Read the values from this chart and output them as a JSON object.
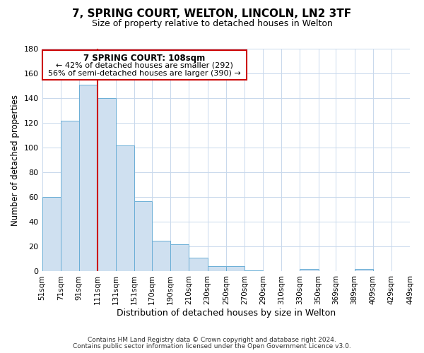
{
  "title": "7, SPRING COURT, WELTON, LINCOLN, LN2 3TF",
  "subtitle": "Size of property relative to detached houses in Welton",
  "xlabel": "Distribution of detached houses by size in Welton",
  "ylabel": "Number of detached properties",
  "bar_values": [
    60,
    122,
    151,
    140,
    102,
    57,
    25,
    22,
    11,
    4,
    4,
    1,
    0,
    0,
    2,
    0,
    0,
    2,
    0,
    0
  ],
  "bar_color": "#cfe0f0",
  "bar_edge_color": "#6aaed6",
  "vline_color": "#cc0000",
  "ylim": [
    0,
    180
  ],
  "yticks": [
    0,
    20,
    40,
    60,
    80,
    100,
    120,
    140,
    160,
    180
  ],
  "annotation_title": "7 SPRING COURT: 108sqm",
  "annotation_line1": "← 42% of detached houses are smaller (292)",
  "annotation_line2": "56% of semi-detached houses are larger (390) →",
  "annotation_box_color": "#ffffff",
  "annotation_box_edge": "#cc0000",
  "footer1": "Contains HM Land Registry data © Crown copyright and database right 2024.",
  "footer2": "Contains public sector information licensed under the Open Government Licence v3.0.",
  "bin_edges": [
    51,
    71,
    91,
    111,
    131,
    151,
    170,
    190,
    210,
    230,
    250,
    270,
    290,
    310,
    330,
    350,
    369,
    389,
    409,
    429,
    449
  ],
  "bar_labels": [
    "51sqm",
    "71sqm",
    "91sqm",
    "111sqm",
    "131sqm",
    "151sqm",
    "170sqm",
    "190sqm",
    "210sqm",
    "230sqm",
    "250sqm",
    "270sqm",
    "290sqm",
    "310sqm",
    "330sqm",
    "350sqm",
    "369sqm",
    "389sqm",
    "409sqm",
    "429sqm",
    "449sqm"
  ],
  "background_color": "#ffffff",
  "grid_color": "#c8d8ec"
}
